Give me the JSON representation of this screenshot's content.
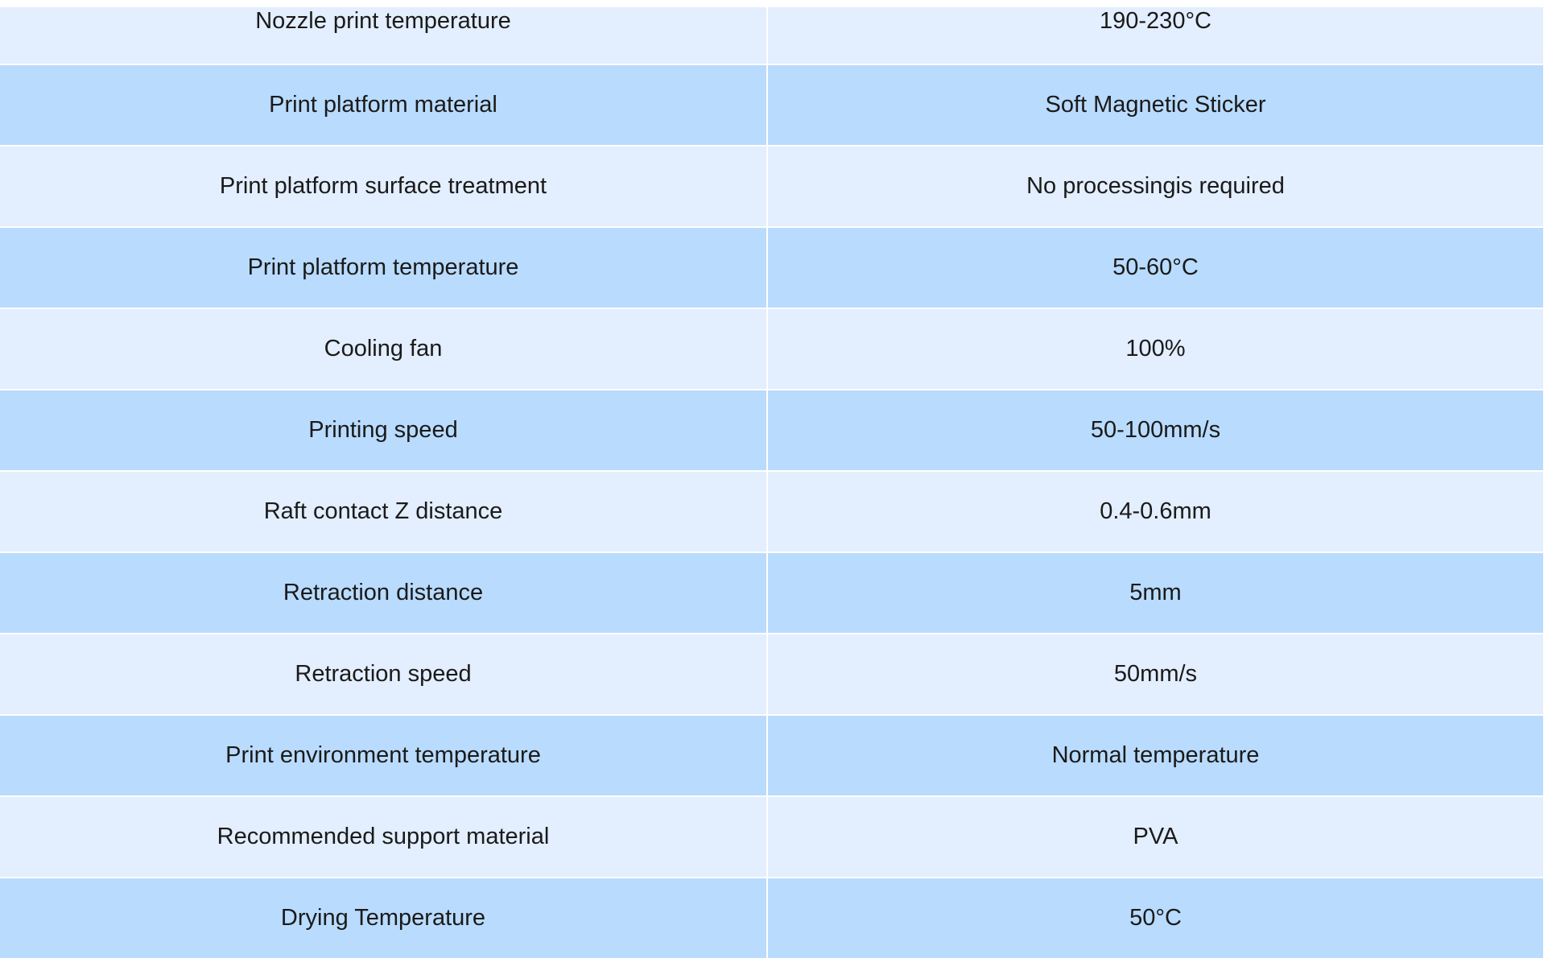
{
  "spec_table": {
    "rows": [
      {
        "parameter": "Nozzle print temperature",
        "value": "190-230°C"
      },
      {
        "parameter": "Print platform material",
        "value": "Soft Magnetic Sticker"
      },
      {
        "parameter": "Print platform surface treatment",
        "value": "No processingis required"
      },
      {
        "parameter": "Print platform temperature",
        "value": "50-60°C"
      },
      {
        "parameter": "Cooling fan",
        "value": "100%"
      },
      {
        "parameter": "Printing speed",
        "value": "50-100mm/s"
      },
      {
        "parameter": "Raft contact Z distance",
        "value": "0.4-0.6mm"
      },
      {
        "parameter": "Retraction distance",
        "value": "5mm"
      },
      {
        "parameter": "Retraction speed",
        "value": "50mm/s"
      },
      {
        "parameter": "Print environment temperature",
        "value": "Normal temperature"
      },
      {
        "parameter": "Recommended support material",
        "value": "PVA"
      },
      {
        "parameter": "Drying Temperature",
        "value": "50°C"
      }
    ]
  },
  "colors": {
    "row_light": "#e3eefe",
    "row_dark": "#b9dbfe",
    "text": "#1a1a1a",
    "grid": "#ffffff"
  }
}
